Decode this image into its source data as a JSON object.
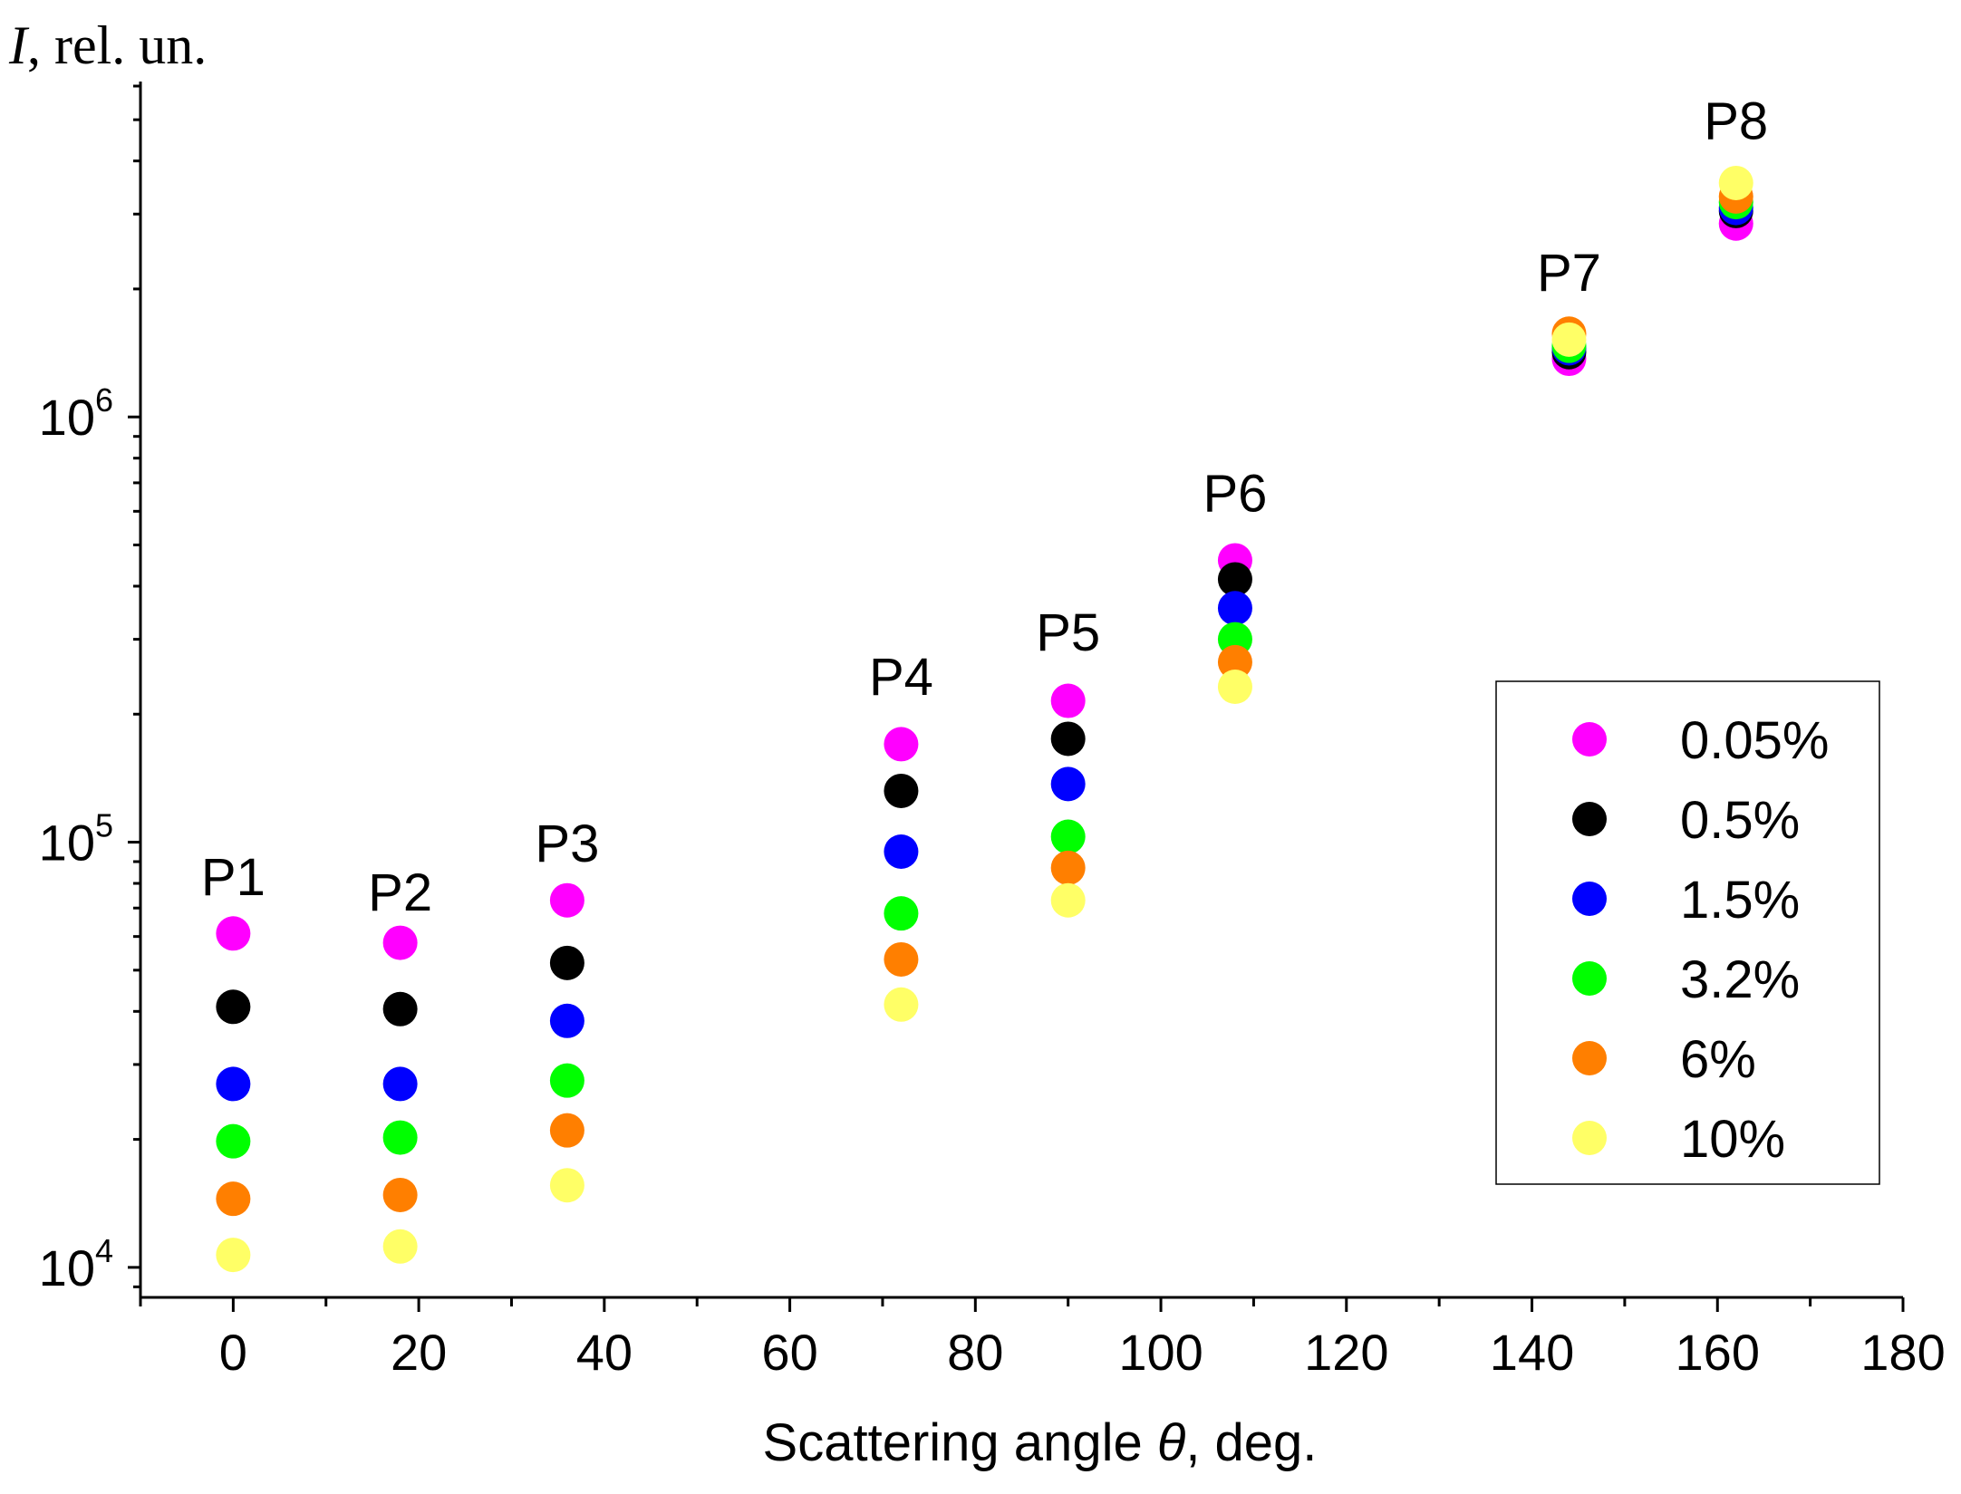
{
  "chart_data": {
    "type": "scatter",
    "ylabel_italic": "I",
    "ylabel_rest": ", rel. un.",
    "xlabel_prefix": "Scattering angle ",
    "xlabel_symbol": "θ",
    "xlabel_suffix": ", deg.",
    "xlim": [
      -10,
      180
    ],
    "ylim": [
      8500,
      6000000
    ],
    "yscale": "log",
    "grid": false,
    "legend_position": "right",
    "x_ticks": [
      0,
      20,
      40,
      60,
      80,
      100,
      120,
      140,
      160,
      180
    ],
    "x_tick_labels": [
      "0",
      "20",
      "40",
      "60",
      "80",
      "100",
      "120",
      "140",
      "160",
      "180"
    ],
    "y_ticks": [
      {
        "value": 10000,
        "base": "10",
        "exp": "4"
      },
      {
        "value": 100000,
        "base": "10",
        "exp": "5"
      },
      {
        "value": 1000000,
        "base": "10",
        "exp": "6"
      }
    ],
    "points_labels": [
      {
        "label": "P1",
        "x": 0,
        "y": 75000
      },
      {
        "label": "P2",
        "x": 18,
        "y": 69000
      },
      {
        "label": "P3",
        "x": 36,
        "y": 90000
      },
      {
        "label": "P4",
        "x": 72,
        "y": 222000
      },
      {
        "label": "P5",
        "x": 90,
        "y": 282000
      },
      {
        "label": "P6",
        "x": 108,
        "y": 600000
      },
      {
        "label": "P7",
        "x": 144,
        "y": 1980000
      },
      {
        "label": "P8",
        "x": 162,
        "y": 4500000
      }
    ],
    "x": [
      0,
      18,
      36,
      72,
      90,
      108,
      144,
      162
    ],
    "series": [
      {
        "name": "0.05%",
        "color": "#ff00ff",
        "values": [
          61000,
          58000,
          73000,
          170000,
          215000,
          460000,
          1370000,
          2850000
        ]
      },
      {
        "name": "0.5%",
        "color": "#000000",
        "values": [
          41000,
          40500,
          52000,
          132000,
          175000,
          415000,
          1420000,
          3050000
        ]
      },
      {
        "name": "1.5%",
        "color": "#0000ff",
        "values": [
          27000,
          27000,
          38000,
          95000,
          137000,
          355000,
          1450000,
          3100000
        ]
      },
      {
        "name": "3.2%",
        "color": "#00ff00",
        "values": [
          19800,
          20200,
          27500,
          68000,
          103000,
          300000,
          1470000,
          3200000
        ]
      },
      {
        "name": "6%",
        "color": "#ff7f00",
        "values": [
          14500,
          14800,
          21000,
          53000,
          87000,
          265000,
          1570000,
          3300000
        ]
      },
      {
        "name": "10%",
        "color": "#ffff66",
        "values": [
          10700,
          11200,
          15600,
          41500,
          73000,
          232000,
          1520000,
          3550000
        ]
      }
    ]
  }
}
